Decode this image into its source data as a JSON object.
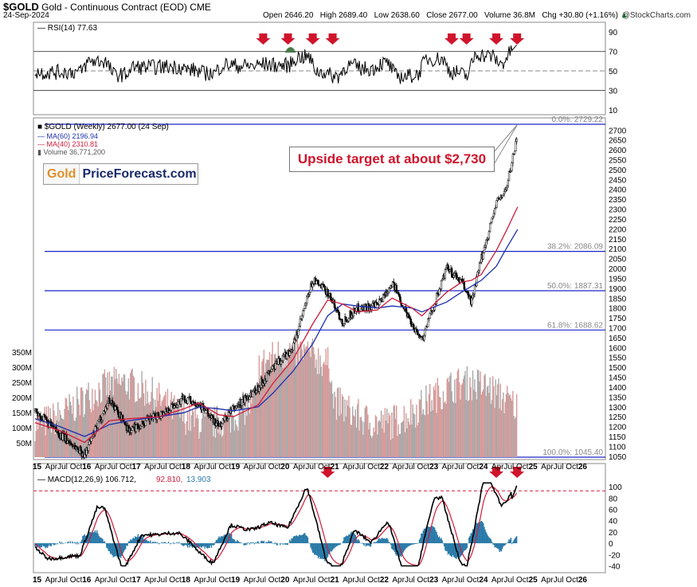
{
  "header": {
    "ticker": "$GOLD",
    "name": "Gold - Continuous Contract (EOD)",
    "exchange": "CME",
    "date": "24-Sep-2024",
    "open": "Open 2646.20",
    "high": "High 2689.40",
    "low": "Low 2638.60",
    "close": "Close 2677.00",
    "volume": "Volume 36.8M",
    "change": "Chg +30.80 (+1.16%)",
    "up_arrow": "▲",
    "credit": "@StockCharts.com"
  },
  "rsi_panel": {
    "label": "RSI(14) 77.63",
    "ticks": [
      "90",
      "70",
      "50",
      "30",
      "10"
    ]
  },
  "price_panel": {
    "legend_title": "$GOLD (Weekly) 2677.00 (24 Sep)",
    "ma60": "MA(60) 2196.94",
    "ma40": "MA(40) 2310.81",
    "volume": "Volume 36,771,200"
  },
  "logo": {
    "gold": "Gold",
    "rest": "PriceForecast.com"
  },
  "annotation": "Upside target at about $2,730",
  "colors": {
    "price": "#000000",
    "ma60": "#1c2fb0",
    "ma40": "#d01c3c",
    "fib": "#1c24c8",
    "arrow": "#d0142c",
    "vol": "#c7a0a0",
    "hist": "#2a7aa8"
  },
  "macd_panel": {
    "label": "MACD(12,26,9) 106.712,",
    "signal": "92.810,",
    "hist": "13.903",
    "ticks": [
      "100",
      "80",
      "60",
      "40",
      "20",
      "0",
      "-20",
      "-40"
    ]
  },
  "x_axis": {
    "labels": [
      "15",
      "Apr",
      "Jul",
      "Oct",
      "16",
      "Apr",
      "Jul",
      "Oct",
      "17",
      "Apr",
      "Jul",
      "Oct",
      "18",
      "Apr",
      "Jul",
      "Oct",
      "19",
      "Apr",
      "Jul",
      "Oct",
      "20",
      "Apr",
      "Jul",
      "Oct",
      "21",
      "Apr",
      "Jul",
      "Oct",
      "22",
      "Apr",
      "Jul",
      "Oct",
      "23",
      "Apr",
      "Jul",
      "Oct",
      "24",
      "Apr",
      "Jul",
      "Oct",
      "25",
      "Apr",
      "Jul",
      "Oct",
      "26"
    ]
  },
  "chart_data": {
    "type": "line",
    "title": "$GOLD (Weekly) Gold - Continuous Contract (EOD)",
    "x": [
      2015.0,
      2015.5,
      2016.0,
      2016.5,
      2016.9,
      2017.5,
      2018.0,
      2018.3,
      2018.7,
      2019.0,
      2019.5,
      2019.8,
      2020.2,
      2020.6,
      2020.9,
      2021.2,
      2021.5,
      2021.9,
      2022.2,
      2022.6,
      2022.8,
      2023.3,
      2023.6,
      2023.8,
      2024.0,
      2024.3,
      2024.5,
      2024.73
    ],
    "series": [
      {
        "name": "Price",
        "values": [
          1280,
          1160,
          1060,
          1340,
          1180,
          1260,
          1340,
          1320,
          1200,
          1290,
          1400,
          1500,
          1600,
          1940,
          1880,
          1730,
          1800,
          1810,
          1930,
          1720,
          1640,
          2000,
          1930,
          1830,
          2050,
          2330,
          2400,
          2677
        ]
      },
      {
        "name": "MA(60)",
        "values": [
          1240,
          1200,
          1150,
          1210,
          1230,
          1250,
          1270,
          1300,
          1290,
          1280,
          1300,
          1370,
          1480,
          1620,
          1760,
          1820,
          1810,
          1800,
          1810,
          1800,
          1780,
          1830,
          1880,
          1910,
          1940,
          2010,
          2100,
          2196.94
        ]
      },
      {
        "name": "MA(40)",
        "values": [
          1220,
          1180,
          1120,
          1230,
          1240,
          1250,
          1290,
          1320,
          1260,
          1250,
          1310,
          1420,
          1540,
          1720,
          1840,
          1820,
          1780,
          1790,
          1850,
          1800,
          1760,
          1880,
          1930,
          1940,
          1970,
          2090,
          2190,
          2310.81
        ]
      }
    ],
    "fib_levels": [
      {
        "label": "0.0%: 2729.22",
        "value": 2729.22
      },
      {
        "label": "38.2%: 2086.09",
        "value": 2086.09
      },
      {
        "label": "50.0%: 1887.31",
        "value": 1887.31
      },
      {
        "label": "61.8%: 1688.62",
        "value": 1688.62
      },
      {
        "label": "100.0%: 1045.40",
        "value": 1045.4
      }
    ],
    "ylim": [
      1035,
      2745
    ],
    "y_ticks": [
      "2700",
      "2650",
      "2600",
      "2550",
      "2500",
      "2450",
      "2400",
      "2350",
      "2300",
      "2250",
      "2200",
      "2150",
      "2100",
      "2050",
      "2000",
      "1950",
      "1900",
      "1850",
      "1800",
      "1750",
      "1700",
      "1650",
      "1600",
      "1550",
      "1500",
      "1450",
      "1400",
      "1350",
      "1300",
      "1250",
      "1200",
      "1150",
      "1100",
      "1050"
    ],
    "volume_ticks": [
      "350M",
      "300M",
      "250M",
      "200M",
      "150M",
      "100M",
      "50M"
    ],
    "rsi": {
      "last": 77.63,
      "overbought": 70,
      "oversold": 30,
      "range": [
        10,
        95
      ]
    },
    "macd": {
      "macd": 106.712,
      "signal": 92.81,
      "histogram": 13.903,
      "range": [
        -45,
        110
      ]
    }
  }
}
